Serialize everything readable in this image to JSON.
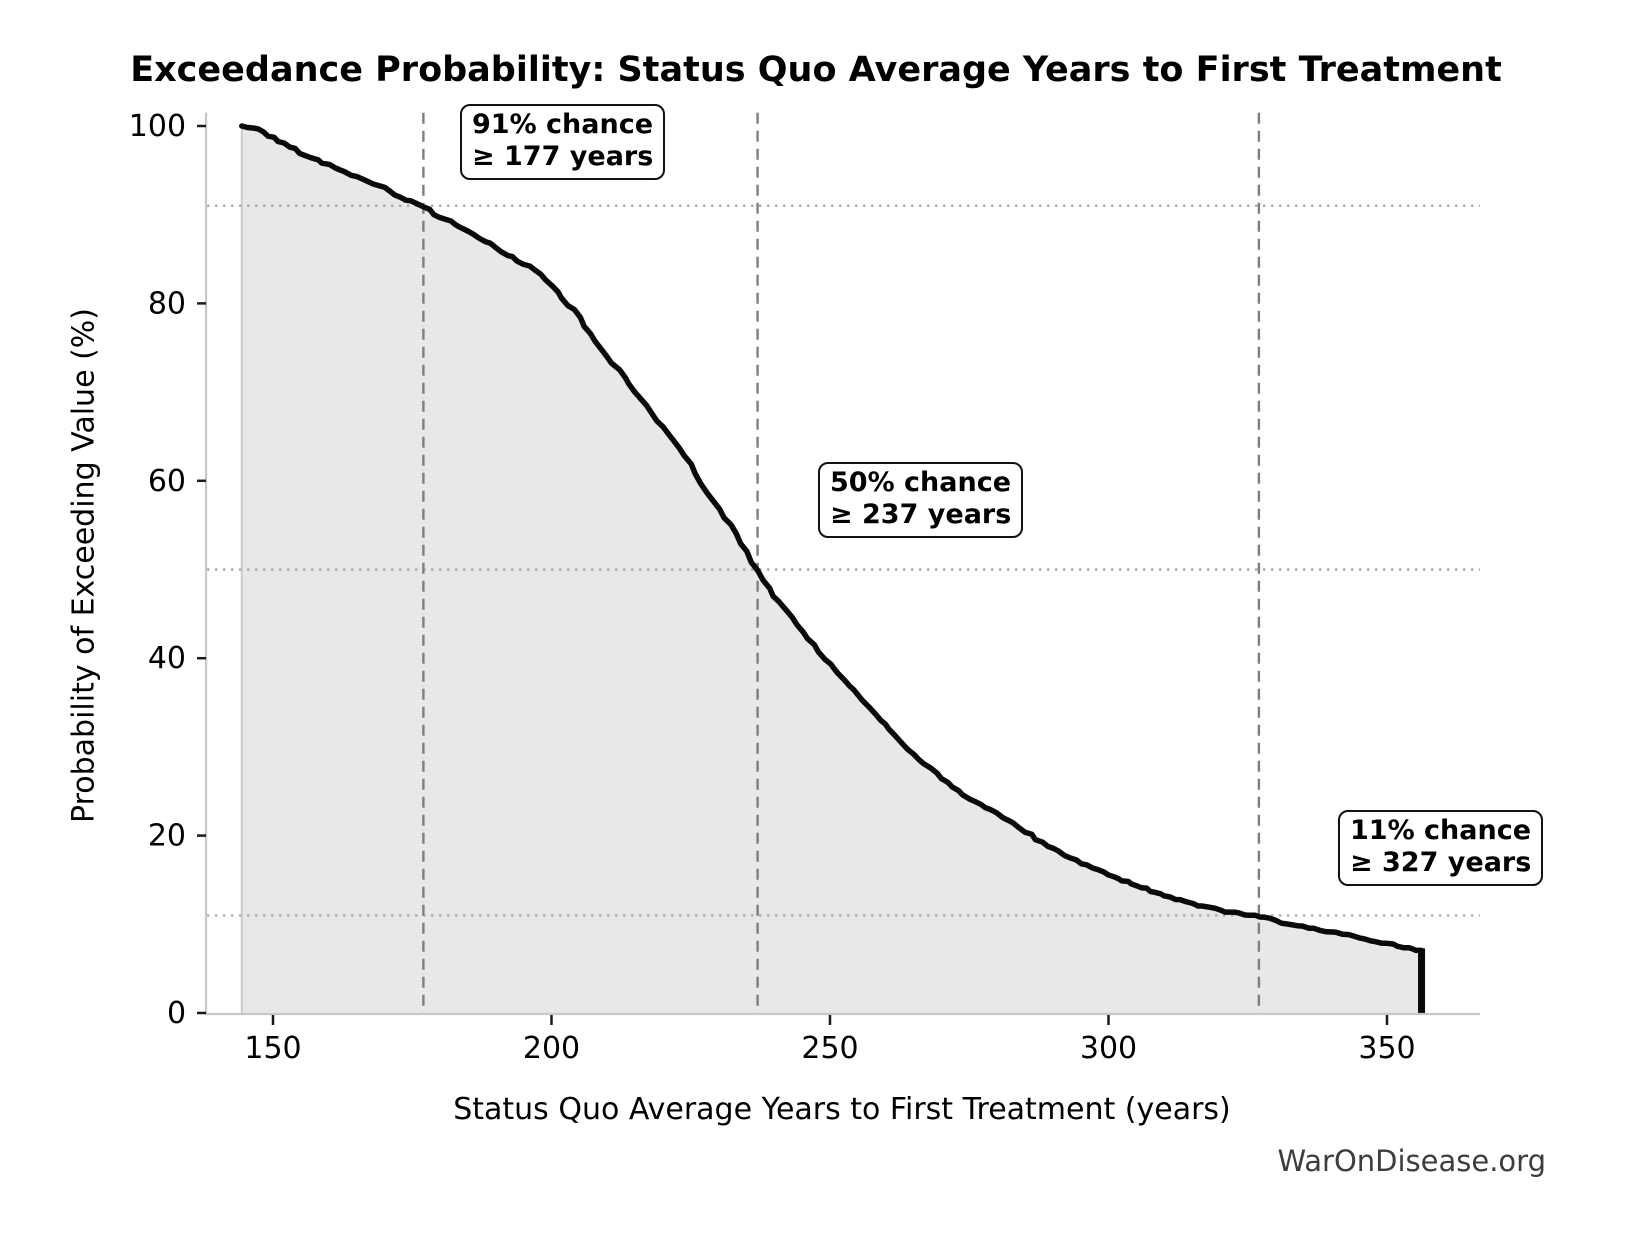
{
  "title": "Exceedance Probability: Status Quo Average Years to First Treatment",
  "watermark": "WarOnDisease.org",
  "chart_data": {
    "type": "line",
    "title": "Exceedance Probability: Status Quo Average Years to First Treatment",
    "xlabel": "Status Quo Average Years to First Treatment (years)",
    "ylabel": "Probability of Exceeding Value (%)",
    "xlim": [
      137.8,
      366.7
    ],
    "ylim": [
      0,
      101.5
    ],
    "x_ticks": [
      150,
      200,
      250,
      300,
      350
    ],
    "y_ticks": [
      0,
      20,
      40,
      60,
      80,
      100
    ],
    "grid_v_dashed_x": [
      177,
      237,
      327
    ],
    "grid_h_dotted_y": [
      91,
      50,
      11
    ],
    "legend_position": "none",
    "area_fill": true,
    "end_drop_x": 356.2,
    "series": [
      {
        "name": "exceedance-probability-curve",
        "points": [
          [
            144.4,
            100
          ],
          [
            146.5,
            100
          ],
          [
            150,
            98.8
          ],
          [
            153,
            97.8
          ],
          [
            157,
            96.5
          ],
          [
            160,
            95.7
          ],
          [
            164,
            94.6
          ],
          [
            167,
            93.9
          ],
          [
            170,
            93.1
          ],
          [
            173,
            92.2
          ],
          [
            177,
            91
          ],
          [
            180,
            89.9
          ],
          [
            185,
            88.2
          ],
          [
            189,
            86.9
          ],
          [
            192,
            85.6
          ],
          [
            196,
            84.4
          ],
          [
            199,
            82.8
          ],
          [
            202,
            80.7
          ],
          [
            205,
            78.6
          ],
          [
            209,
            74.9
          ],
          [
            213,
            71.8
          ],
          [
            217,
            68.6
          ],
          [
            221,
            65.4
          ],
          [
            224,
            63
          ],
          [
            227,
            59.8
          ],
          [
            230,
            57
          ],
          [
            233,
            54.2
          ],
          [
            237,
            50
          ],
          [
            240,
            47.2
          ],
          [
            243,
            44.8
          ],
          [
            246,
            42.4
          ],
          [
            250,
            39.4
          ],
          [
            255,
            36
          ],
          [
            259,
            33.2
          ],
          [
            264,
            29.9
          ],
          [
            268,
            27.6
          ],
          [
            272,
            25.5
          ],
          [
            276,
            24
          ],
          [
            280,
            22.6
          ],
          [
            284,
            21
          ],
          [
            288,
            19.4
          ],
          [
            292,
            18
          ],
          [
            296,
            16.8
          ],
          [
            300,
            15.7
          ],
          [
            305,
            14.5
          ],
          [
            310,
            13.4
          ],
          [
            314,
            12.6
          ],
          [
            318,
            12
          ],
          [
            322,
            11.5
          ],
          [
            327,
            11
          ],
          [
            331,
            10.4
          ],
          [
            335,
            9.9
          ],
          [
            339,
            9.4
          ],
          [
            343,
            8.9
          ],
          [
            347,
            8.4
          ],
          [
            350,
            8
          ],
          [
            353,
            7.6
          ],
          [
            356.2,
            7.2
          ]
        ]
      }
    ],
    "annotations": [
      {
        "prob_pct": 91,
        "years": 177,
        "line1": "91% chance",
        "line2": "≥ 177 years"
      },
      {
        "prob_pct": 50,
        "years": 237,
        "line1": "50% chance",
        "line2": "≥ 237 years"
      },
      {
        "prob_pct": 11,
        "years": 327,
        "line1": "11% chance",
        "line2": "≥ 327 years"
      }
    ]
  },
  "colors": {
    "curve": "#0a0a0a",
    "area_fill": "#e8e8e8",
    "area_edge": "#c9c9c9",
    "dashed_gridline": "#7f7f7f",
    "dotted_gridline": "#ababab",
    "spine": "#c8c8c8",
    "tick": "#1a1a1a",
    "tick_label": "#000000",
    "watermark": "#3d3d3d"
  }
}
